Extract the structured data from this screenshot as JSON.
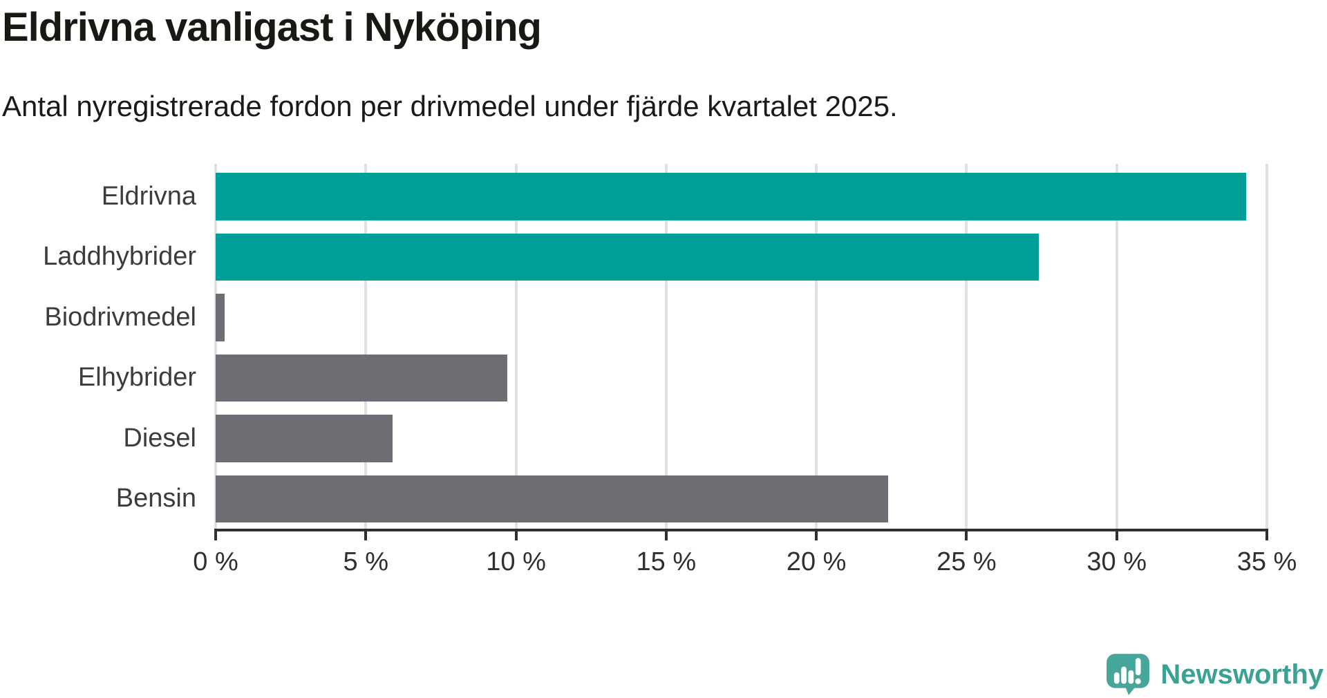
{
  "title": "Eldrivna vanligast i Nyköping",
  "subtitle": "Antal nyregistrerade fordon per drivmedel under fjärde kvartalet 2025.",
  "chart_data": {
    "type": "bar",
    "orientation": "horizontal",
    "categories": [
      "Eldrivna",
      "Laddhybrider",
      "Biodrivmedel",
      "Elhybrider",
      "Diesel",
      "Bensin"
    ],
    "values": [
      34.3,
      27.4,
      0.3,
      9.7,
      5.9,
      22.4
    ],
    "unit": "%",
    "bar_colors": [
      "#009e98",
      "#009e98",
      "#6d6d73",
      "#6d6d73",
      "#6d6d73",
      "#6d6d73"
    ],
    "highlight_color": "#009e98",
    "default_color": "#6d6d73",
    "xlim": [
      0,
      35
    ],
    "x_ticks": [
      0,
      5,
      10,
      15,
      20,
      25,
      30,
      35
    ],
    "x_tick_labels": [
      "0 %",
      "5 %",
      "10 %",
      "15 %",
      "20 %",
      "25 %",
      "30 %",
      "35 %"
    ],
    "grid": true,
    "gridline_color": "#e0e0e0",
    "axis_color": "#2f2f2f",
    "legend": "none"
  },
  "branding": {
    "logo_text": "Newsworthy",
    "logo_color": "#3ba193",
    "logo_mark_color": "#46a69b",
    "logo_icon": "newsworthy-pin-barchart-icon"
  }
}
